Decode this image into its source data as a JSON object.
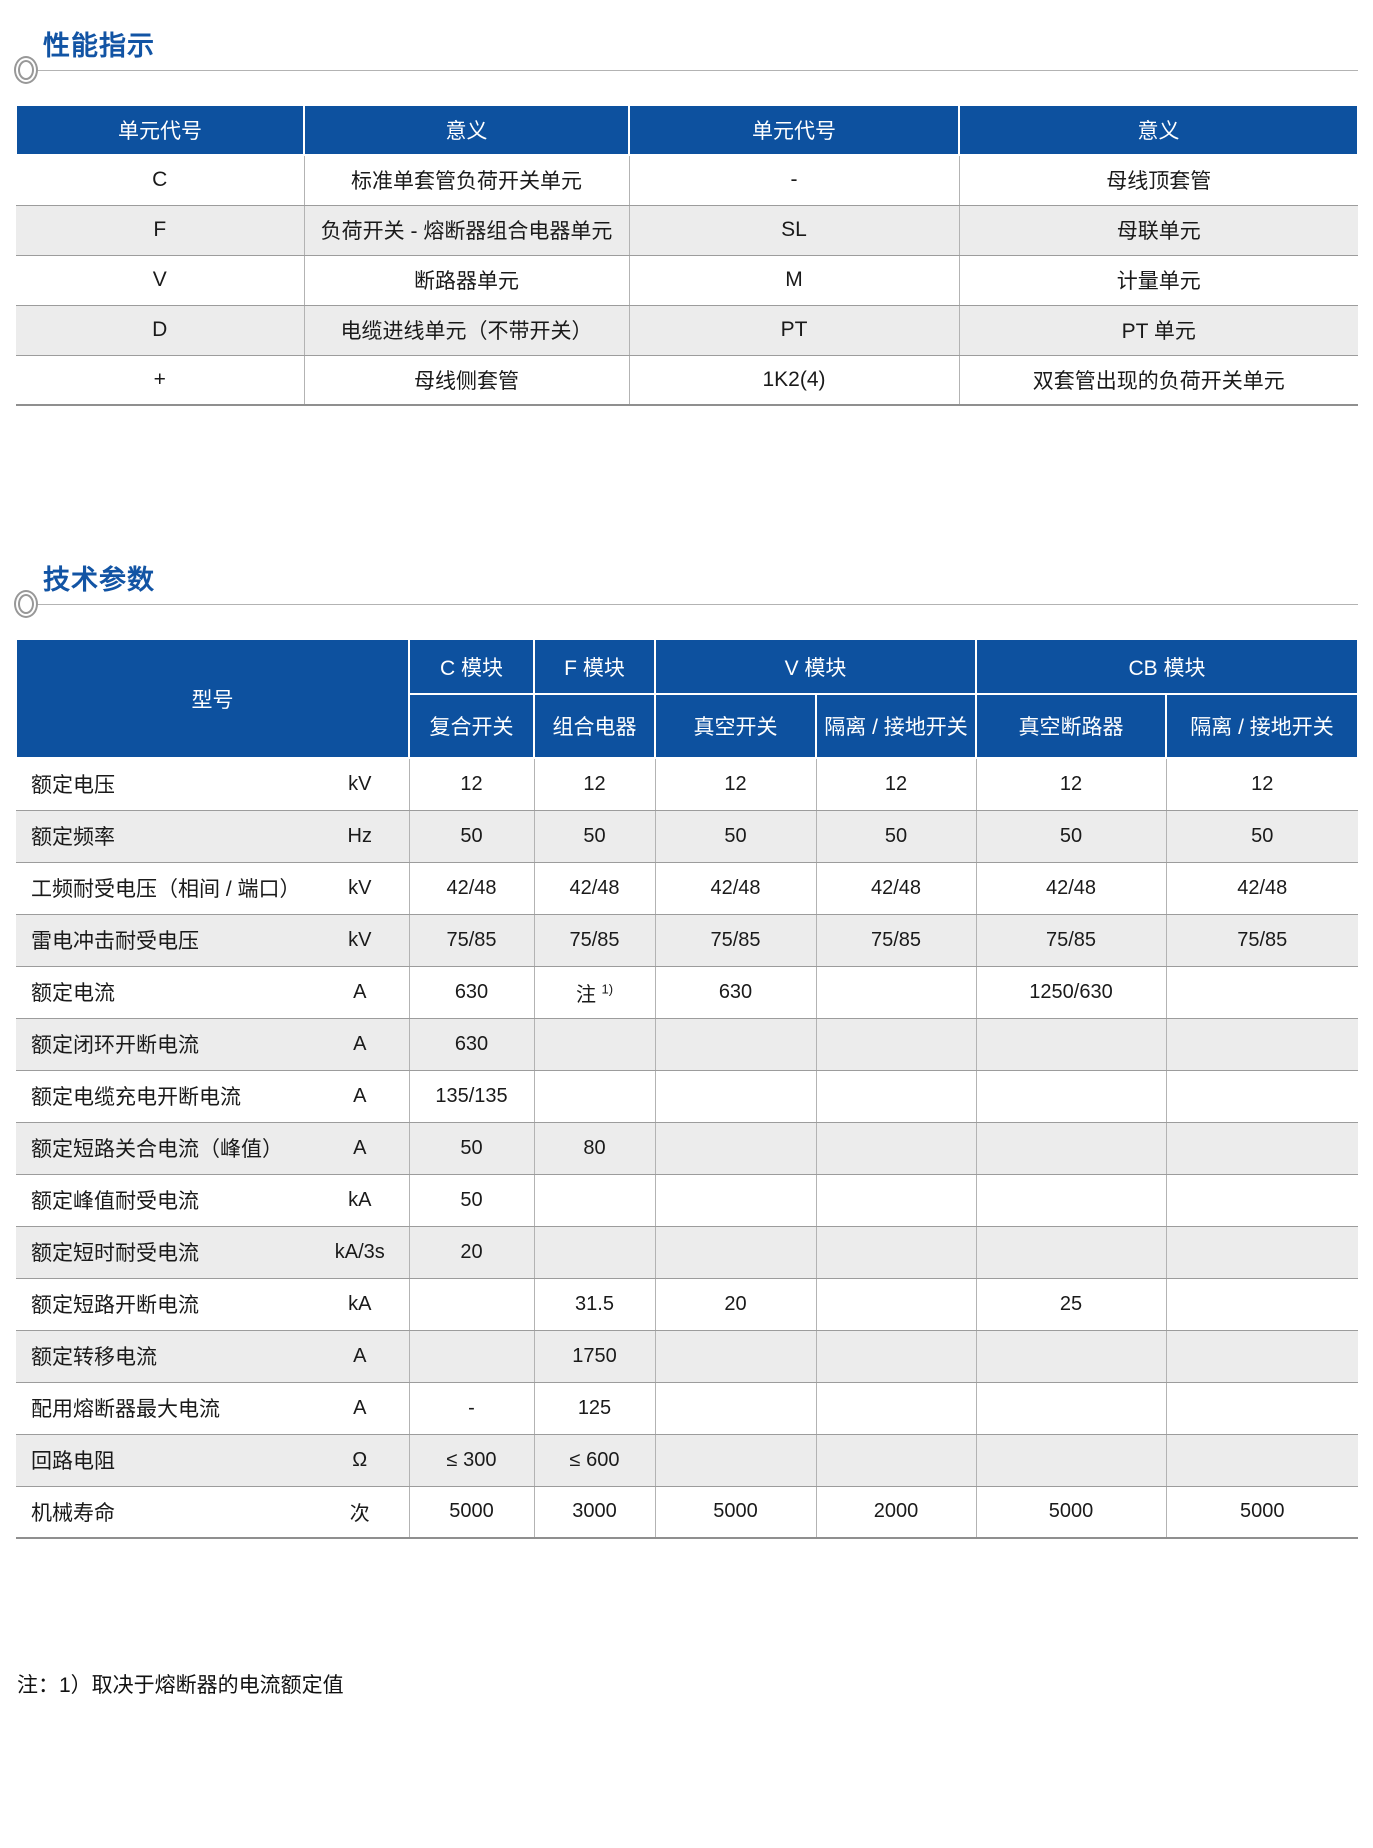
{
  "colors": {
    "header_blue": "#0d519f",
    "title_blue": "#1254a4",
    "row_stripe": "#ececec",
    "rule_gray": "#b3b3b3"
  },
  "sections": {
    "performance": {
      "title": "性能指示"
    },
    "technical": {
      "title": "技术参数"
    }
  },
  "unit_code_table": {
    "headers": [
      "单元代号",
      "意义",
      "单元代号",
      "意义"
    ],
    "rows": [
      [
        "C",
        "标准单套管负荷开关单元",
        "-",
        "母线顶套管"
      ],
      [
        "F",
        "负荷开关 - 熔断器组合电器单元",
        "SL",
        "母联单元"
      ],
      [
        "V",
        "断路器单元",
        "M",
        "计量单元"
      ],
      [
        "D",
        "电缆进线单元（不带开关）",
        "PT",
        "PT 单元"
      ],
      [
        "+",
        "母线侧套管",
        "1K2(4)",
        "双套管出现的负荷开关单元"
      ]
    ]
  },
  "tech_table": {
    "model_header": "型号",
    "groups": [
      {
        "label": "C 模块",
        "subs": [
          "复合开关"
        ]
      },
      {
        "label": "F 模块",
        "subs": [
          "组合电器"
        ]
      },
      {
        "label": "V 模块",
        "subs": [
          "真空开关",
          "隔离 / 接地开关"
        ]
      },
      {
        "label": "CB 模块",
        "subs": [
          "真空断路器",
          "隔离 / 接地开关"
        ]
      }
    ],
    "rows": [
      {
        "name": "额定电压",
        "unit": "kV",
        "values": [
          "12",
          "12",
          "12",
          "12",
          "12",
          "12"
        ]
      },
      {
        "name": "额定频率",
        "unit": "Hz",
        "values": [
          "50",
          "50",
          "50",
          "50",
          "50",
          "50"
        ]
      },
      {
        "name": "工频耐受电压（相间 / 端口）",
        "unit": "kV",
        "values": [
          "42/48",
          "42/48",
          "42/48",
          "42/48",
          "42/48",
          "42/48"
        ]
      },
      {
        "name": "雷电冲击耐受电压",
        "unit": "kV",
        "values": [
          "75/85",
          "75/85",
          "75/85",
          "75/85",
          "75/85",
          "75/85"
        ]
      },
      {
        "name": "额定电流",
        "unit": "A",
        "values": [
          "630",
          "注 ^1)",
          "630",
          "",
          "1250/630",
          ""
        ]
      },
      {
        "name": "额定闭环开断电流",
        "unit": "A",
        "values": [
          "630",
          "",
          "",
          "",
          "",
          ""
        ]
      },
      {
        "name": "额定电缆充电开断电流",
        "unit": "A",
        "values": [
          "135/135",
          "",
          "",
          "",
          "",
          ""
        ]
      },
      {
        "name": "额定短路关合电流（峰值）",
        "unit": "A",
        "values": [
          "50",
          "80",
          "",
          "",
          "",
          ""
        ]
      },
      {
        "name": "额定峰值耐受电流",
        "unit": "kA",
        "values": [
          "50",
          "",
          "",
          "",
          "",
          ""
        ]
      },
      {
        "name": "额定短时耐受电流",
        "unit": "kA/3s",
        "values": [
          "20",
          "",
          "",
          "",
          "",
          ""
        ]
      },
      {
        "name": "额定短路开断电流",
        "unit": "kA",
        "values": [
          "",
          "31.5",
          "20",
          "",
          "25",
          ""
        ]
      },
      {
        "name": "额定转移电流",
        "unit": "A",
        "values": [
          "",
          "1750",
          "",
          "",
          "",
          ""
        ]
      },
      {
        "name": "配用熔断器最大电流",
        "unit": "A",
        "values": [
          "-",
          "125",
          "",
          "",
          "",
          ""
        ]
      },
      {
        "name": "回路电阻",
        "unit": "Ω",
        "values": [
          "≤ 300",
          "≤ 600",
          "",
          "",
          "",
          ""
        ]
      },
      {
        "name": "机械寿命",
        "unit": "次",
        "values": [
          "5000",
          "3000",
          "5000",
          "2000",
          "5000",
          "5000"
        ]
      }
    ]
  },
  "footnote": "注：1）取决于熔断器的电流额定值"
}
